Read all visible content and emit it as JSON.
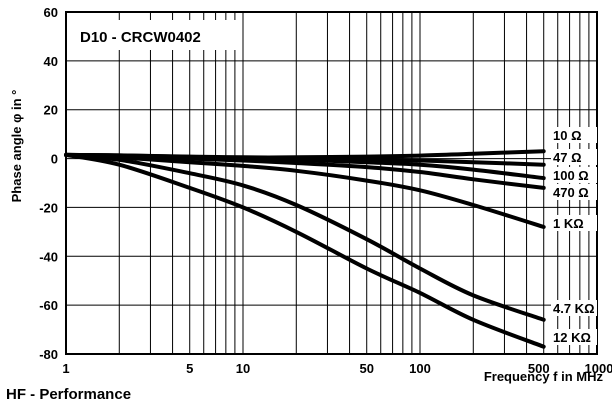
{
  "chart_data": {
    "type": "line",
    "title": "D10 - CRCW0402",
    "xlabel": "Frequency f in MHz",
    "ylabel": "Phase angle φ in °",
    "xscale": "log",
    "xlim": [
      1,
      1000
    ],
    "ylim": [
      -80,
      60
    ],
    "x_ticks": [
      1,
      5,
      10,
      50,
      100,
      500,
      1000
    ],
    "y_ticks": [
      60,
      40,
      20,
      0,
      -20,
      -40,
      -60,
      -80
    ],
    "grid": true,
    "series": [
      {
        "name": "10 Ω",
        "x": [
          1,
          2,
          5,
          10,
          20,
          50,
          100,
          200,
          500
        ],
        "y": [
          1.5,
          1.3,
          0.8,
          0.5,
          0.5,
          0.8,
          1.2,
          2.0,
          3.0
        ]
      },
      {
        "name": "47 Ω",
        "x": [
          1,
          2,
          5,
          10,
          20,
          50,
          100,
          200,
          500
        ],
        "y": [
          1.5,
          1.3,
          0.7,
          0.3,
          0,
          -0.4,
          -0.8,
          -1.5,
          -2.5
        ]
      },
      {
        "name": "100 Ω",
        "x": [
          1,
          2,
          5,
          10,
          20,
          50,
          100,
          200,
          500
        ],
        "y": [
          1.5,
          1.2,
          0.5,
          0,
          -0.5,
          -1.5,
          -2.5,
          -4.5,
          -8
        ]
      },
      {
        "name": "470 Ω",
        "x": [
          1,
          2,
          5,
          10,
          20,
          50,
          100,
          200,
          500
        ],
        "y": [
          1.5,
          1.0,
          0,
          -0.8,
          -1.8,
          -3.5,
          -5.5,
          -8.5,
          -12
        ]
      },
      {
        "name": "1 KΩ",
        "x": [
          1,
          2,
          5,
          10,
          20,
          50,
          100,
          200,
          500
        ],
        "y": [
          1.5,
          0.5,
          -1.5,
          -3,
          -5,
          -9,
          -13,
          -19,
          -28
        ]
      },
      {
        "name": "4.7 KΩ",
        "x": [
          1,
          2,
          5,
          10,
          20,
          50,
          100,
          200,
          500
        ],
        "y": [
          1.5,
          -0.5,
          -6,
          -11,
          -19,
          -33,
          -45,
          -56,
          -66
        ]
      },
      {
        "name": "12 KΩ",
        "x": [
          1,
          2,
          5,
          10,
          20,
          50,
          100,
          200,
          500
        ],
        "y": [
          1.5,
          -2.5,
          -12,
          -20,
          -30,
          -45,
          -55,
          -66,
          -77
        ]
      }
    ]
  },
  "footer": "HF - Performance"
}
